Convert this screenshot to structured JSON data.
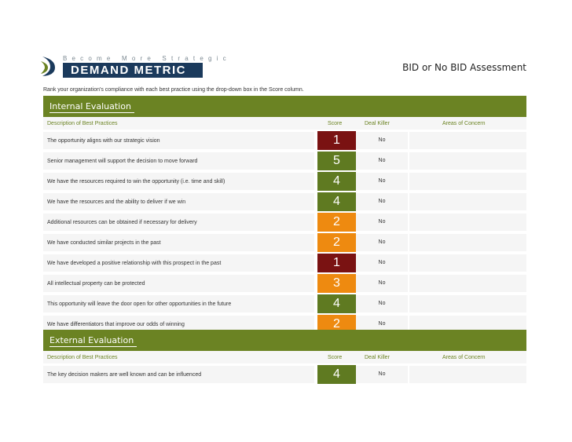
{
  "brand": {
    "tagline": "Become More Strategic",
    "name": "DEMAND METRIC"
  },
  "title": "BID or No BID Assessment",
  "instructions": "Rank your organization's compliance with each best practice using the drop-down box in the Score column.",
  "columns": {
    "description": "Description of Best Practices",
    "score": "Score",
    "deal_killer": "Deal Killer",
    "concerns": "Areas of Concern"
  },
  "score_colors": {
    "1": "#7a1212",
    "2": "#ee8a10",
    "3": "#ee8a10",
    "4": "#5f7a21",
    "5": "#5f7a21"
  },
  "internal": {
    "title": "Internal Evaluation",
    "rows": [
      {
        "text": "The opportunity aligns with our strategic vision",
        "score": "1",
        "deal_killer": "No"
      },
      {
        "text": "Senior management will support the decision to move forward",
        "score": "5",
        "deal_killer": "No"
      },
      {
        "text": "We have the resources required to win the opportunity (i.e. time and skill)",
        "score": "4",
        "deal_killer": "No"
      },
      {
        "text": "We have the resources and the ability to deliver if we win",
        "score": "4",
        "deal_killer": "No"
      },
      {
        "text": "Additional resources can be obtained if necessary for delivery",
        "score": "2",
        "deal_killer": "No"
      },
      {
        "text": "We have conducted similar projects in the past",
        "score": "2",
        "deal_killer": "No"
      },
      {
        "text": "We have developed a positive relationship with this prospect in the past",
        "score": "1",
        "deal_killer": "No"
      },
      {
        "text": "All intellectual property can be protected",
        "score": "3",
        "deal_killer": "No"
      },
      {
        "text": "This opportunity will leave the door open for other opportunities in the future",
        "score": "4",
        "deal_killer": "No"
      },
      {
        "text": "We have differentiators that improve our odds of winning",
        "score": "2",
        "deal_killer": "No"
      }
    ]
  },
  "external": {
    "title": "External Evaluation",
    "rows": [
      {
        "text": "The key decision makers are well known and can be influenced",
        "score": "4",
        "deal_killer": "No"
      }
    ]
  }
}
